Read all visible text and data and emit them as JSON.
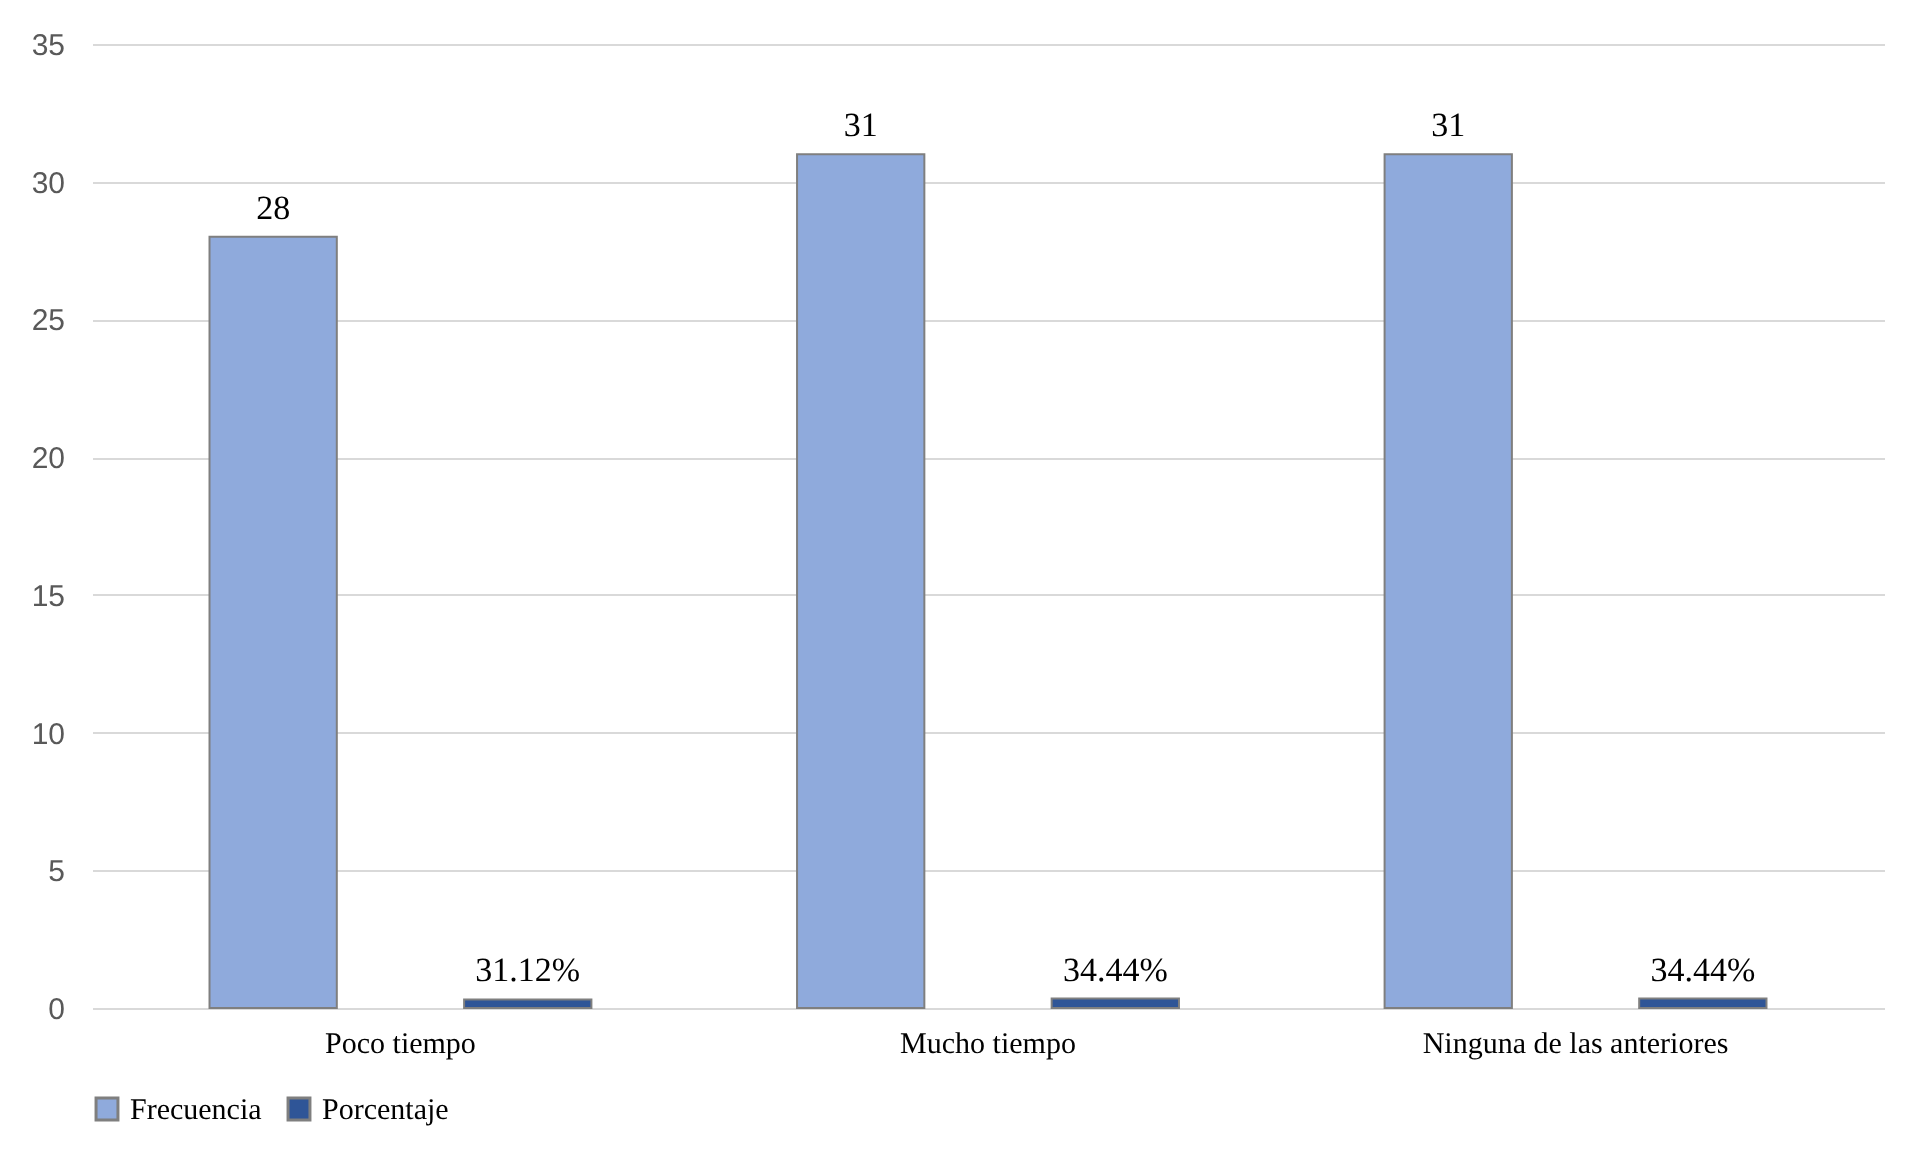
{
  "chart_data": {
    "type": "bar",
    "categories": [
      "Poco tiempo",
      "Mucho tiempo",
      "Ninguna de las anteriores"
    ],
    "series": [
      {
        "name": "Frecuencia",
        "color": "#8faadc",
        "values": [
          28,
          31,
          31
        ],
        "value_labels": [
          "28",
          "31",
          "31"
        ]
      },
      {
        "name": "Porcentaje",
        "color": "#2f5597",
        "values": [
          0.3112,
          0.3444,
          0.3444
        ],
        "value_labels": [
          "31.12%",
          "34.44%",
          "34.44%"
        ]
      }
    ],
    "ylim": [
      0,
      35
    ],
    "yticks": [
      0,
      5,
      10,
      15,
      20,
      25,
      30,
      35
    ],
    "grid": "y",
    "legend": "bottom"
  }
}
